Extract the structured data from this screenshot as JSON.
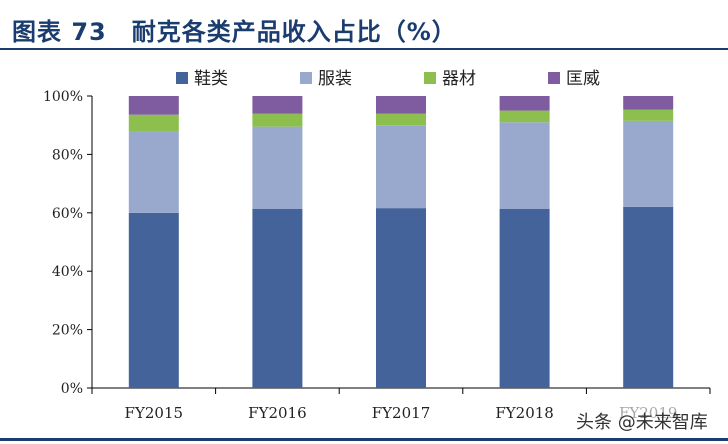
{
  "header": {
    "title": "图表 73　耐克各类产品收入占比（%）"
  },
  "watermark": "头条 @未来智库",
  "chart_data": {
    "type": "bar",
    "stacked": true,
    "categories": [
      "FY2015",
      "FY2016",
      "FY2017",
      "FY2018",
      "FY2019"
    ],
    "series": [
      {
        "name": "鞋类",
        "color": "#44639b",
        "values": [
          60.0,
          61.3,
          61.6,
          61.3,
          62.0
        ]
      },
      {
        "name": "服装",
        "color": "#98a9cd",
        "values": [
          28.0,
          28.2,
          28.4,
          29.7,
          29.5
        ]
      },
      {
        "name": "器材",
        "color": "#8cbf4d",
        "values": [
          5.6,
          4.5,
          4.0,
          4.0,
          3.8
        ]
      },
      {
        "name": "匡威",
        "color": "#7f5ca0",
        "values": [
          6.4,
          6.0,
          6.0,
          5.0,
          4.7
        ]
      }
    ],
    "ylim": [
      0,
      100
    ],
    "yticks": [
      "0%",
      "20%",
      "40%",
      "60%",
      "80%",
      "100%"
    ],
    "legend_position": "top",
    "grid": false
  }
}
